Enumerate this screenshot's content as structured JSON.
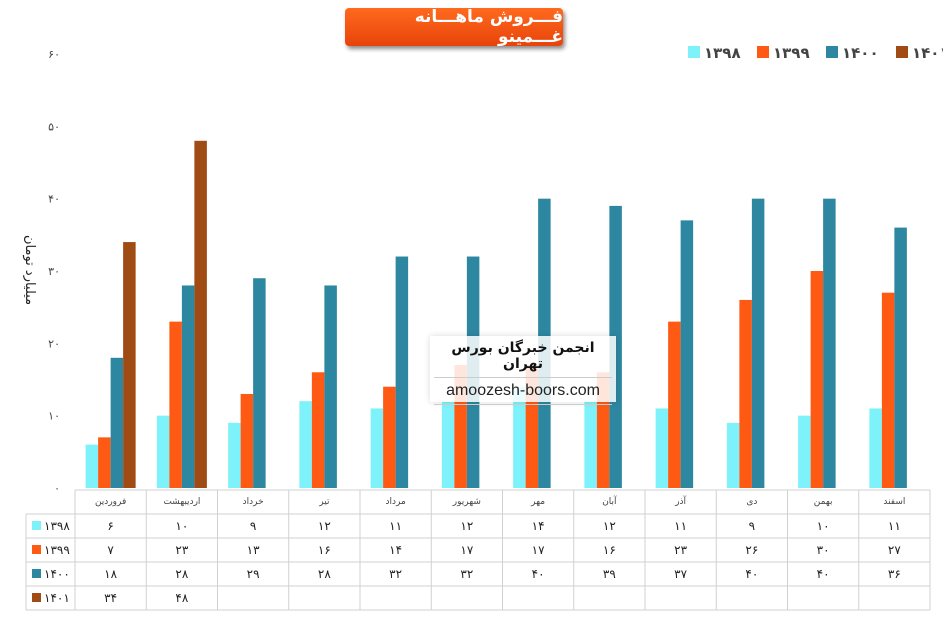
{
  "chart_data": {
    "type": "bar",
    "title": "فـــروش ماهـــانه غـــمینو",
    "ylabel": "میلیارد تومان",
    "xlabel": "",
    "ylim": [
      0,
      60
    ],
    "yticks": [
      "۰",
      "۱۰",
      "۲۰",
      "۳۰",
      "۴۰",
      "۵۰",
      "۶۰"
    ],
    "grid": false,
    "legend_position": "top-right",
    "categories": [
      "فروردین",
      "اردیبهشت",
      "خرداد",
      "تیر",
      "مرداد",
      "شهریور",
      "مهر",
      "آبان",
      "آذر",
      "دی",
      "بهمن",
      "اسفند"
    ],
    "series": [
      {
        "name": "۱۳۹۸",
        "color": "#7ef2fa",
        "values": [
          6,
          10,
          9,
          12,
          11,
          12,
          14,
          12,
          11,
          9,
          10,
          11
        ],
        "labels": [
          "۶",
          "۱۰",
          "۹",
          "۱۲",
          "۱۱",
          "۱۲",
          "۱۴",
          "۱۲",
          "۱۱",
          "۹",
          "۱۰",
          "۱۱"
        ]
      },
      {
        "name": "۱۳۹۹",
        "color": "#ff5a14",
        "values": [
          7,
          23,
          13,
          16,
          14,
          17,
          17,
          16,
          23,
          26,
          30,
          27
        ],
        "labels": [
          "۷",
          "۲۳",
          "۱۳",
          "۱۶",
          "۱۴",
          "۱۷",
          "۱۷",
          "۱۶",
          "۲۳",
          "۲۶",
          "۳۰",
          "۲۷"
        ]
      },
      {
        "name": "۱۴۰۰",
        "color": "#2d87a0",
        "values": [
          18,
          28,
          29,
          28,
          32,
          32,
          40,
          39,
          37,
          40,
          40,
          36
        ],
        "labels": [
          "۱۸",
          "۲۸",
          "۲۹",
          "۲۸",
          "۳۲",
          "۳۲",
          "۴۰",
          "۳۹",
          "۳۷",
          "۴۰",
          "۴۰",
          "۳۶"
        ]
      },
      {
        "name": "۱۴۰۱",
        "color": "#a04a14",
        "values": [
          34,
          48,
          null,
          null,
          null,
          null,
          null,
          null,
          null,
          null,
          null,
          null
        ],
        "labels": [
          "۳۴",
          "۴۸",
          "",
          "",
          "",
          "",
          "",
          "",
          "",
          "",
          "",
          ""
        ]
      }
    ]
  },
  "watermark": {
    "line1": "انجمن خبرگان بورس تهران",
    "line2": "amoozesh-boors.com"
  }
}
